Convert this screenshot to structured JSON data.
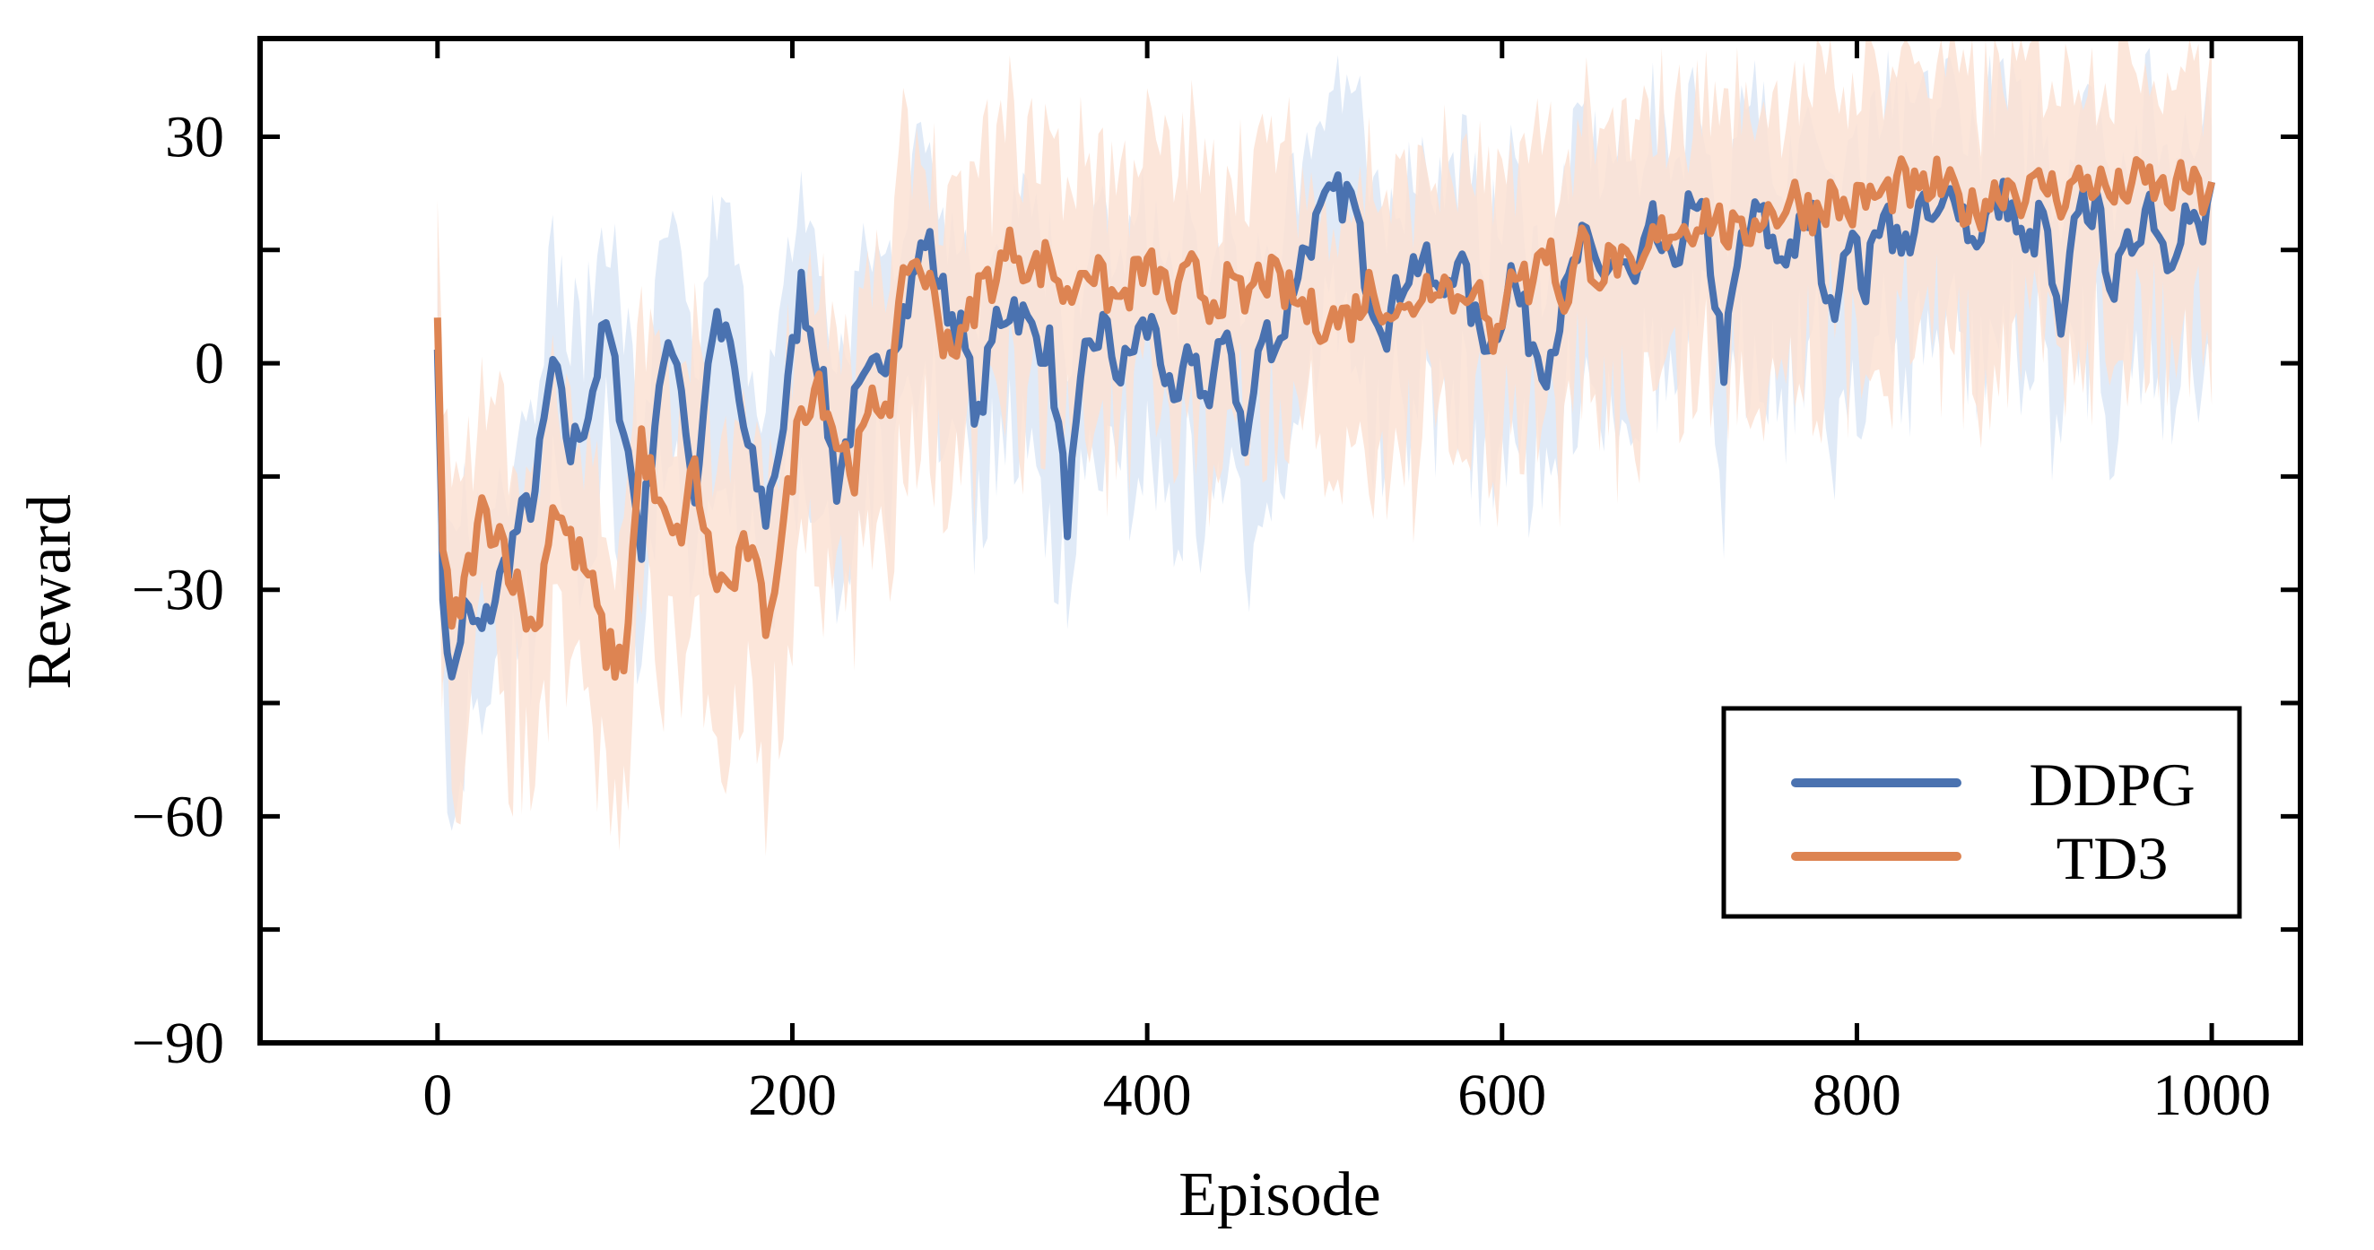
{
  "chart_data": {
    "type": "line",
    "xlabel": "Episode",
    "ylabel": "Reward",
    "xlim": [
      -100,
      1050
    ],
    "ylim": [
      -90,
      43
    ],
    "xticks": [
      0,
      200,
      400,
      600,
      800,
      1000
    ],
    "xtick_labels": [
      "0",
      "200",
      "400",
      "600",
      "800",
      "1000"
    ],
    "yticks": [
      -90,
      -60,
      -30,
      0,
      30
    ],
    "ytick_labels": [
      "−90",
      "−60",
      "−30",
      "0",
      "30"
    ],
    "legend_position": "lower-right",
    "colors": {
      "DDPG": "#4a72b0",
      "TD3": "#dd8452",
      "DDPG_band": "#dde8f6",
      "TD3_band": "#fbe2d3"
    },
    "series": [
      {
        "name": "DDPG",
        "x": [
          0,
          3,
          8,
          15,
          25,
          35,
          45,
          55,
          65,
          75,
          85,
          95,
          105,
          115,
          125,
          135,
          145,
          155,
          165,
          175,
          185,
          195,
          205,
          215,
          225,
          235,
          245,
          255,
          265,
          275,
          285,
          295,
          305,
          315,
          325,
          335,
          345,
          355,
          365,
          375,
          385,
          395,
          405,
          415,
          425,
          435,
          445,
          455,
          465,
          475,
          485,
          495,
          505,
          515,
          525,
          535,
          545,
          555,
          565,
          575,
          585,
          595,
          605,
          615,
          625,
          635,
          645,
          655,
          665,
          675,
          685,
          695,
          705,
          715,
          725,
          735,
          745,
          755,
          765,
          775,
          785,
          795,
          805,
          815,
          825,
          835,
          845,
          855,
          865,
          875,
          885,
          895,
          905,
          915,
          925,
          935,
          945,
          955,
          965,
          975,
          985,
          995,
          1000
        ],
        "y": [
          5,
          -30,
          -43,
          -33,
          -36,
          -29,
          -22,
          -17,
          0,
          -12,
          -6,
          5,
          -8,
          -24,
          -2,
          2,
          -18,
          5,
          2,
          -12,
          -20,
          -8,
          10,
          0,
          -16,
          -6,
          -2,
          3,
          8,
          17,
          9,
          4,
          -8,
          6,
          8,
          4,
          2,
          -20,
          0,
          5,
          -2,
          4,
          5,
          -8,
          2,
          -6,
          6,
          -12,
          4,
          3,
          13,
          18,
          22,
          22,
          10,
          5,
          12,
          14,
          8,
          15,
          5,
          3,
          12,
          4,
          0,
          8,
          16,
          12,
          14,
          10,
          18,
          12,
          20,
          18,
          0,
          16,
          20,
          14,
          16,
          20,
          6,
          18,
          10,
          22,
          14,
          20,
          18,
          24,
          16,
          20,
          22,
          14,
          20,
          2,
          22,
          20,
          10,
          16,
          22,
          14,
          20,
          16,
          24
        ]
      },
      {
        "name": "TD3",
        "x": [
          0,
          3,
          8,
          15,
          25,
          35,
          45,
          55,
          65,
          75,
          85,
          95,
          105,
          115,
          125,
          135,
          145,
          155,
          165,
          175,
          185,
          195,
          205,
          215,
          225,
          235,
          245,
          255,
          265,
          275,
          285,
          295,
          305,
          315,
          325,
          335,
          345,
          355,
          365,
          375,
          385,
          395,
          405,
          415,
          425,
          435,
          445,
          455,
          465,
          475,
          485,
          495,
          505,
          515,
          525,
          535,
          545,
          555,
          565,
          575,
          585,
          595,
          605,
          615,
          625,
          635,
          645,
          655,
          665,
          675,
          685,
          695,
          705,
          715,
          725,
          735,
          745,
          755,
          765,
          775,
          785,
          795,
          805,
          815,
          825,
          835,
          845,
          855,
          865,
          875,
          885,
          895,
          905,
          915,
          925,
          935,
          945,
          955,
          965,
          975,
          985,
          995,
          1000
        ],
        "y": [
          8,
          -24,
          -36,
          -30,
          -20,
          -22,
          -30,
          -36,
          -18,
          -24,
          -28,
          -38,
          -40,
          -10,
          -20,
          -24,
          -14,
          -28,
          -30,
          -24,
          -34,
          -22,
          -6,
          -2,
          -10,
          -14,
          -6,
          -4,
          14,
          12,
          4,
          2,
          10,
          12,
          16,
          12,
          14,
          8,
          14,
          10,
          8,
          12,
          12,
          8,
          12,
          8,
          10,
          8,
          12,
          10,
          8,
          6,
          6,
          6,
          10,
          8,
          6,
          10,
          12,
          8,
          12,
          0,
          14,
          10,
          16,
          8,
          16,
          12,
          14,
          10,
          16,
          18,
          18,
          20,
          18,
          16,
          20,
          20,
          22,
          20,
          22,
          20,
          22,
          22,
          24,
          22,
          24,
          22,
          20,
          22,
          24,
          22,
          24,
          22,
          24,
          24,
          22,
          24,
          24,
          22,
          24,
          22,
          24
        ]
      }
    ]
  }
}
